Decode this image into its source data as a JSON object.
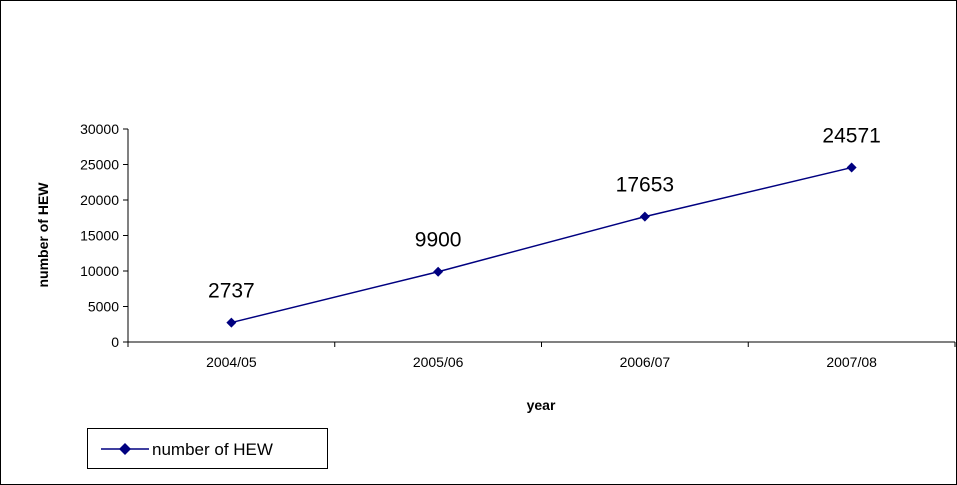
{
  "chart_data": {
    "type": "line",
    "title": "",
    "xlabel": "year",
    "ylabel": "number of HEW",
    "categories": [
      "2004/05",
      "2005/06",
      "2006/07",
      "2007/08"
    ],
    "series": [
      {
        "name": "number of HEW",
        "values": [
          2737,
          9900,
          17653,
          24571
        ],
        "data_labels": [
          "2737",
          "9900",
          "17653",
          "24571"
        ],
        "color": "#000080",
        "marker": "diamond"
      }
    ],
    "ylim": [
      0,
      30000
    ],
    "yticks": [
      0,
      5000,
      10000,
      15000,
      20000,
      25000,
      30000
    ],
    "ytick_labels": [
      "0",
      "5000",
      "10000",
      "15000",
      "20000",
      "25000",
      "30000"
    ],
    "grid": false,
    "legend_position": "bottom-left"
  }
}
